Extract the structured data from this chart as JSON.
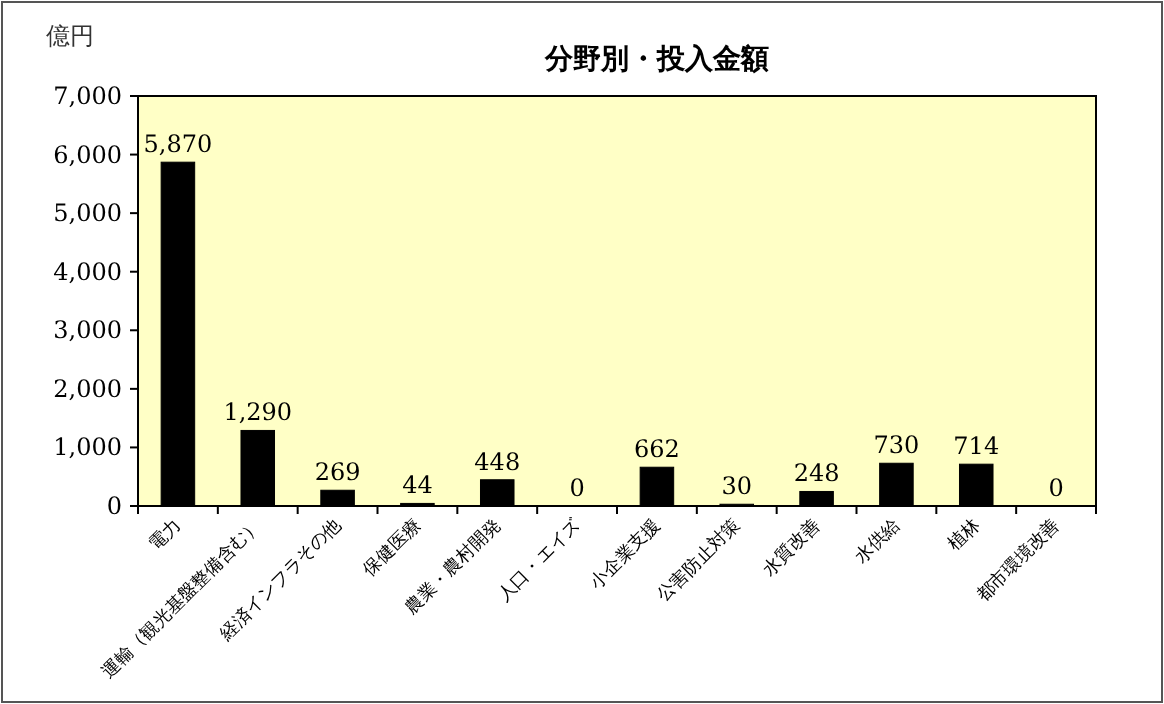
{
  "chart_data": {
    "type": "bar",
    "title": "分野別・投入金額",
    "ylabel": "億円",
    "categories": [
      "電力",
      "運輸（観光基盤整備含む）",
      "経済インフラその他",
      "保健医療",
      "農業・農村開発",
      "人口・エイズ",
      "小企業支援",
      "公害防止対策",
      "水質改善",
      "水供給",
      "植林",
      "都市環境改善"
    ],
    "series": [
      {
        "color": "#000000",
        "values": [
          5870,
          1290,
          269,
          44,
          448,
          0,
          662,
          30,
          248,
          730,
          714,
          0
        ],
        "value_labels": [
          "5,870",
          "1,290",
          "269",
          "44",
          "448",
          "0",
          "662",
          "30",
          "248",
          "730",
          "714",
          "0"
        ]
      }
    ],
    "ylim": [
      0,
      7000
    ],
    "yticks": [
      0,
      {
        "value": 1000,
        "label": "1,000"
      },
      {
        "value": 2000,
        "label": "2,000"
      },
      {
        "value": 3000,
        "label": "3,000"
      },
      {
        "value": 4000,
        "label": "4,000"
      },
      {
        "value": 5000,
        "label": "5,000"
      },
      {
        "value": 6000,
        "label": "6,000"
      },
      {
        "value": 7000,
        "label": "7,000"
      }
    ],
    "grid": false
  }
}
